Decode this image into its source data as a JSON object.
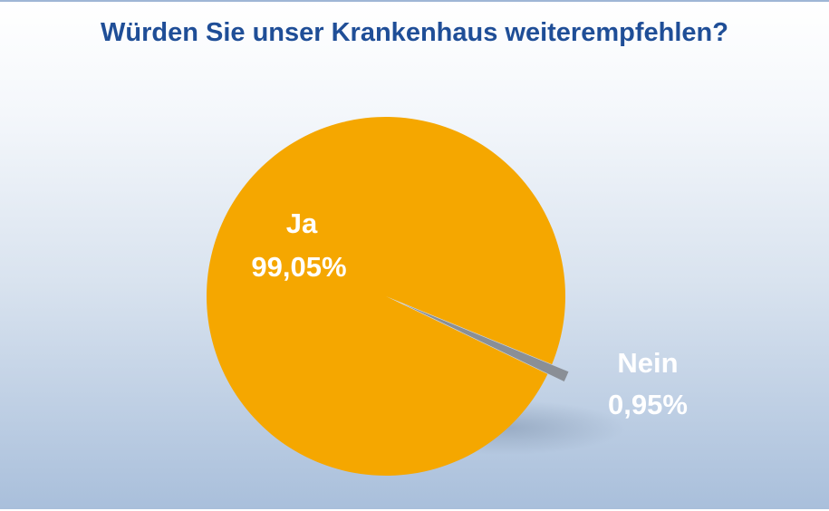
{
  "chart_data": {
    "type": "pie",
    "title": "Würden Sie unser Krankenhaus weiterempfehlen?",
    "slices": [
      {
        "label": "Ja",
        "value": 99.05,
        "value_label": "99,05%",
        "color": "#f5a700"
      },
      {
        "label": "Nein",
        "value": 0.95,
        "value_label": "0,95%",
        "color": "#8a8f96"
      }
    ],
    "legend": "none"
  }
}
